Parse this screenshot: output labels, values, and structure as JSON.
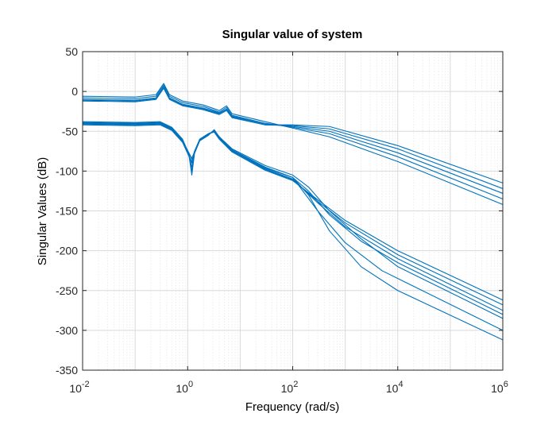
{
  "chart_data": {
    "type": "line",
    "title": "Singular value of system",
    "xlabel": "Frequency (rad/s)",
    "ylabel": "Singular Values (dB)",
    "xscale": "log",
    "xlim": [
      0.01,
      1000000
    ],
    "ylim": [
      -350,
      50
    ],
    "grid": "on (major and minor)",
    "legend": "none",
    "line_color": "#0072bd",
    "x_ticks": [
      {
        "value": 0.01,
        "base": "10",
        "exp": "-2"
      },
      {
        "value": 1,
        "base": "10",
        "exp": "0"
      },
      {
        "value": 100,
        "base": "10",
        "exp": "2"
      },
      {
        "value": 10000,
        "base": "10",
        "exp": "4"
      },
      {
        "value": 1000000,
        "base": "10",
        "exp": "6"
      }
    ],
    "y_ticks": [
      50,
      0,
      -50,
      -100,
      -150,
      -200,
      -250,
      -300,
      -350
    ],
    "series": [
      {
        "values": [
          [
            0.01,
            -6
          ],
          [
            0.1,
            -7
          ],
          [
            0.25,
            -4
          ],
          [
            0.35,
            10
          ],
          [
            0.45,
            -4
          ],
          [
            0.8,
            -12
          ],
          [
            2,
            -17
          ],
          [
            4,
            -24
          ],
          [
            5.5,
            -18
          ],
          [
            7,
            -28
          ],
          [
            30,
            -38
          ],
          [
            100,
            -46
          ],
          [
            500,
            -57
          ],
          [
            10000,
            -88
          ],
          [
            1000000,
            -142
          ]
        ]
      },
      {
        "values": [
          [
            0.01,
            -8
          ],
          [
            0.1,
            -9
          ],
          [
            0.25,
            -6
          ],
          [
            0.35,
            8
          ],
          [
            0.45,
            -6
          ],
          [
            0.8,
            -14
          ],
          [
            2,
            -19
          ],
          [
            4,
            -26
          ],
          [
            5.5,
            -20
          ],
          [
            7,
            -30
          ],
          [
            30,
            -40
          ],
          [
            100,
            -45
          ],
          [
            500,
            -53
          ],
          [
            10000,
            -82
          ],
          [
            1000000,
            -135
          ]
        ]
      },
      {
        "values": [
          [
            0.01,
            -10
          ],
          [
            0.1,
            -11
          ],
          [
            0.25,
            -8
          ],
          [
            0.35,
            6
          ],
          [
            0.45,
            -8
          ],
          [
            0.8,
            -16
          ],
          [
            2,
            -21
          ],
          [
            4,
            -27
          ],
          [
            5.5,
            -22
          ],
          [
            7,
            -31
          ],
          [
            30,
            -41
          ],
          [
            100,
            -44
          ],
          [
            500,
            -50
          ],
          [
            10000,
            -77
          ],
          [
            1000000,
            -128
          ]
        ]
      },
      {
        "values": [
          [
            0.01,
            -11
          ],
          [
            0.1,
            -12
          ],
          [
            0.25,
            -9
          ],
          [
            0.35,
            5
          ],
          [
            0.45,
            -9
          ],
          [
            0.8,
            -17
          ],
          [
            2,
            -22
          ],
          [
            4,
            -28
          ],
          [
            5.5,
            -23
          ],
          [
            7,
            -32
          ],
          [
            30,
            -42
          ],
          [
            100,
            -43
          ],
          [
            500,
            -47
          ],
          [
            10000,
            -72
          ],
          [
            1000000,
            -122
          ]
        ]
      },
      {
        "values": [
          [
            0.01,
            -12
          ],
          [
            0.1,
            -13
          ],
          [
            0.25,
            -10
          ],
          [
            0.35,
            4
          ],
          [
            0.45,
            -10
          ],
          [
            0.8,
            -18
          ],
          [
            2,
            -23
          ],
          [
            4,
            -29
          ],
          [
            5.5,
            -24
          ],
          [
            7,
            -33
          ],
          [
            30,
            -42
          ],
          [
            100,
            -42
          ],
          [
            500,
            -44
          ],
          [
            10000,
            -68
          ],
          [
            1000000,
            -115
          ]
        ]
      },
      {
        "values": [
          [
            0.01,
            -38
          ],
          [
            0.1,
            -39
          ],
          [
            0.3,
            -38
          ],
          [
            0.5,
            -45
          ],
          [
            0.8,
            -60
          ],
          [
            1.05,
            -78
          ],
          [
            1.2,
            -105
          ],
          [
            1.35,
            -78
          ],
          [
            1.7,
            -62
          ],
          [
            2.5,
            -55
          ],
          [
            3.2,
            -48
          ],
          [
            4,
            -57
          ],
          [
            7,
            -72
          ],
          [
            30,
            -93
          ],
          [
            100,
            -105
          ],
          [
            200,
            -120
          ],
          [
            500,
            -150
          ],
          [
            2000,
            -185
          ],
          [
            10000,
            -220
          ],
          [
            1000000,
            -285
          ]
        ]
      },
      {
        "values": [
          [
            0.01,
            -39
          ],
          [
            0.1,
            -40
          ],
          [
            0.3,
            -39
          ],
          [
            0.5,
            -46
          ],
          [
            0.8,
            -61
          ],
          [
            1.05,
            -79
          ],
          [
            1.2,
            -100
          ],
          [
            1.35,
            -77
          ],
          [
            1.7,
            -61
          ],
          [
            2.5,
            -54
          ],
          [
            3.2,
            -49
          ],
          [
            4,
            -58
          ],
          [
            7,
            -73
          ],
          [
            30,
            -95
          ],
          [
            100,
            -108
          ],
          [
            200,
            -125
          ],
          [
            500,
            -155
          ],
          [
            2000,
            -188
          ],
          [
            10000,
            -215
          ],
          [
            1000000,
            -280
          ]
        ]
      },
      {
        "values": [
          [
            0.01,
            -40
          ],
          [
            0.1,
            -41
          ],
          [
            0.3,
            -40
          ],
          [
            0.5,
            -47
          ],
          [
            0.8,
            -62
          ],
          [
            1.05,
            -80
          ],
          [
            1.2,
            -95
          ],
          [
            1.35,
            -76
          ],
          [
            1.7,
            -60
          ],
          [
            2.5,
            -53
          ],
          [
            3.2,
            -50
          ],
          [
            4,
            -58
          ],
          [
            7,
            -74
          ],
          [
            30,
            -97
          ],
          [
            100,
            -110
          ],
          [
            300,
            -140
          ],
          [
            1000,
            -170
          ],
          [
            10000,
            -210
          ],
          [
            1000000,
            -275
          ]
        ]
      },
      {
        "values": [
          [
            0.01,
            -41
          ],
          [
            0.1,
            -42
          ],
          [
            0.3,
            -41
          ],
          [
            0.5,
            -48
          ],
          [
            0.8,
            -63
          ],
          [
            1.05,
            -80
          ],
          [
            1.2,
            -90
          ],
          [
            1.35,
            -76
          ],
          [
            1.7,
            -60
          ],
          [
            2.5,
            -53
          ],
          [
            3.2,
            -50
          ],
          [
            4,
            -59
          ],
          [
            7,
            -75
          ],
          [
            30,
            -98
          ],
          [
            100,
            -111
          ],
          [
            300,
            -138
          ],
          [
            1000,
            -165
          ],
          [
            10000,
            -205
          ],
          [
            1000000,
            -268
          ]
        ]
      },
      {
        "values": [
          [
            0.01,
            -42
          ],
          [
            0.1,
            -43
          ],
          [
            0.3,
            -42
          ],
          [
            0.5,
            -49
          ],
          [
            0.8,
            -64
          ],
          [
            1.05,
            -81
          ],
          [
            1.2,
            -88
          ],
          [
            1.35,
            -75
          ],
          [
            1.7,
            -60
          ],
          [
            2.5,
            -53
          ],
          [
            3.2,
            -51
          ],
          [
            4,
            -60
          ],
          [
            7,
            -76
          ],
          [
            30,
            -99
          ],
          [
            100,
            -112
          ],
          [
            300,
            -136
          ],
          [
            1000,
            -162
          ],
          [
            10000,
            -200
          ],
          [
            1000000,
            -262
          ]
        ]
      },
      {
        "values": [
          [
            0.01,
            -40
          ],
          [
            0.1,
            -41
          ],
          [
            0.3,
            -40
          ],
          [
            0.5,
            -47
          ],
          [
            0.8,
            -62
          ],
          [
            1.2,
            -85
          ],
          [
            1.7,
            -60
          ],
          [
            3.2,
            -50
          ],
          [
            7,
            -74
          ],
          [
            30,
            -96
          ],
          [
            100,
            -108
          ],
          [
            200,
            -130
          ],
          [
            500,
            -175
          ],
          [
            2000,
            -220
          ],
          [
            10000,
            -250
          ],
          [
            1000000,
            -312
          ]
        ]
      },
      {
        "values": [
          [
            0.01,
            -40
          ],
          [
            0.1,
            -41
          ],
          [
            0.3,
            -40
          ],
          [
            0.5,
            -47
          ],
          [
            0.8,
            -62
          ],
          [
            1.2,
            -84
          ],
          [
            1.7,
            -60
          ],
          [
            3.2,
            -50
          ],
          [
            7,
            -74
          ],
          [
            30,
            -96
          ],
          [
            100,
            -108
          ],
          [
            300,
            -150
          ],
          [
            1000,
            -190
          ],
          [
            5000,
            -225
          ],
          [
            1000000,
            -300
          ]
        ]
      }
    ]
  }
}
